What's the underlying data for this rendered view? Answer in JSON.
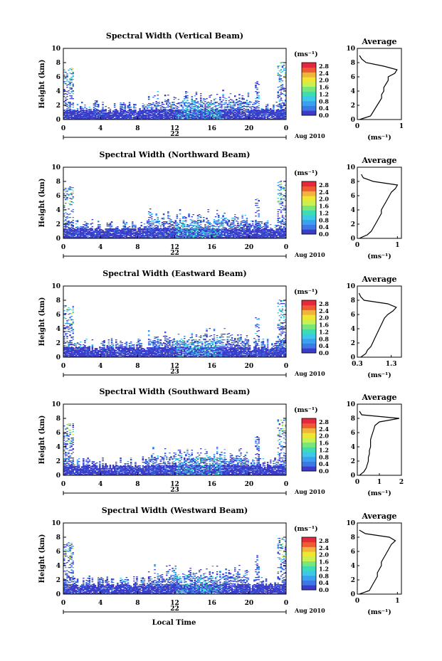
{
  "figure": {
    "x_label": "Local Time",
    "date_label": "Aug 2010",
    "colorbar_unit": "(ms⁻¹)",
    "colorbar_ticks": [
      "0.0",
      "0.4",
      "0.8",
      "1.2",
      "1.6",
      "2.0",
      "2.4",
      "2.8"
    ],
    "colorbar_colors": [
      "#3c3cc8",
      "#3c78e6",
      "#3ca0f0",
      "#3cc8e6",
      "#3cdcb4",
      "#78e678",
      "#c8f050",
      "#f0e632",
      "#f0b43c",
      "#f05a32",
      "#e6283c"
    ],
    "height_label": "Height (km)",
    "average_title": "Average",
    "avg_unit": "(ms⁻¹)"
  },
  "chart_data": [
    {
      "type": "heatmap",
      "title": "Spectral Width (Vertical Beam)",
      "x_ticks": [
        "0",
        "4",
        "8",
        "12",
        "16",
        "20",
        "0"
      ],
      "date_tick": "22",
      "y_ticks": [
        "0",
        "2",
        "4",
        "6",
        "8",
        "10"
      ],
      "xlim": [
        0,
        24
      ],
      "ylim": [
        0,
        10
      ],
      "clim": [
        0.0,
        3.0
      ],
      "avg_profile": {
        "xlim": [
          0,
          1
        ],
        "x_ticks": [
          "0",
          "1"
        ],
        "height_km": [
          0,
          0.5,
          1,
          1.5,
          2,
          2.5,
          3,
          3.5,
          4,
          4.5,
          5,
          5.5,
          6,
          6.5,
          7,
          7.5,
          8,
          8.5,
          9
        ],
        "value": [
          0.05,
          0.3,
          0.35,
          0.4,
          0.45,
          0.5,
          0.55,
          0.55,
          0.6,
          0.6,
          0.65,
          0.7,
          0.7,
          0.85,
          0.9,
          0.6,
          0.2,
          0.1,
          0.05
        ]
      }
    },
    {
      "type": "heatmap",
      "title": "Spectral Width (Northward Beam)",
      "x_ticks": [
        "0",
        "4",
        "8",
        "12",
        "16",
        "20",
        "0"
      ],
      "date_tick": "22",
      "y_ticks": [
        "0",
        "2",
        "4",
        "6",
        "8",
        "10"
      ],
      "xlim": [
        0,
        24
      ],
      "ylim": [
        0,
        10
      ],
      "clim": [
        0.0,
        3.0
      ],
      "avg_profile": {
        "xlim": [
          0,
          1.1
        ],
        "x_ticks": [
          "0",
          "1"
        ],
        "height_km": [
          0,
          0.5,
          1,
          1.5,
          2,
          2.5,
          3,
          3.5,
          4,
          4.5,
          5,
          5.5,
          6,
          6.5,
          7,
          7.5,
          8,
          8.5,
          9
        ],
        "value": [
          0.05,
          0.25,
          0.35,
          0.4,
          0.45,
          0.5,
          0.55,
          0.6,
          0.6,
          0.65,
          0.7,
          0.75,
          0.8,
          0.85,
          0.95,
          1.0,
          0.4,
          0.15,
          0.1
        ]
      }
    },
    {
      "type": "heatmap",
      "title": "Spectral Width (Eastward Beam)",
      "x_ticks": [
        "0",
        "4",
        "8",
        "12",
        "16",
        "20",
        "0"
      ],
      "date_tick": "23",
      "y_ticks": [
        "0",
        "2",
        "4",
        "6",
        "8",
        "10"
      ],
      "xlim": [
        0,
        24
      ],
      "ylim": [
        0,
        10
      ],
      "clim": [
        0.0,
        3.0
      ],
      "avg_profile": {
        "xlim": [
          0.3,
          1.6
        ],
        "x_ticks": [
          "0.3",
          "1.3"
        ],
        "height_km": [
          0,
          0.5,
          1,
          1.5,
          2,
          2.5,
          3,
          3.5,
          4,
          4.5,
          5,
          5.5,
          6,
          6.5,
          7,
          7.5,
          8,
          8.5,
          9
        ],
        "value": [
          0.4,
          0.55,
          0.6,
          0.7,
          0.75,
          0.8,
          0.85,
          0.9,
          0.95,
          1.0,
          1.05,
          1.1,
          1.2,
          1.35,
          1.45,
          1.2,
          0.5,
          0.4,
          0.35
        ]
      }
    },
    {
      "type": "heatmap",
      "title": "Spectral Width (Southward Beam)",
      "x_ticks": [
        "0",
        "4",
        "8",
        "12",
        "16",
        "20",
        "0"
      ],
      "date_tick": "23",
      "y_ticks": [
        "0",
        "2",
        "4",
        "6",
        "8",
        "10"
      ],
      "xlim": [
        0,
        24
      ],
      "ylim": [
        0,
        10
      ],
      "clim": [
        0.0,
        3.0
      ],
      "avg_profile": {
        "xlim": [
          0,
          2
        ],
        "x_ticks": [
          "0",
          "1",
          "2"
        ],
        "height_km": [
          0,
          0.5,
          1,
          1.5,
          2,
          2.5,
          3,
          3.5,
          4,
          4.5,
          5,
          5.5,
          6,
          6.5,
          7,
          7.5,
          8,
          8.5,
          9
        ],
        "value": [
          0.1,
          0.3,
          0.4,
          0.45,
          0.5,
          0.5,
          0.55,
          0.55,
          0.6,
          0.6,
          0.6,
          0.65,
          0.7,
          0.75,
          0.8,
          1.0,
          1.9,
          0.2,
          0.1
        ]
      }
    },
    {
      "type": "heatmap",
      "title": "Spectral Width (Westward Beam)",
      "x_ticks": [
        "0",
        "4",
        "8",
        "12",
        "16",
        "20",
        "0"
      ],
      "date_tick": "22",
      "y_ticks": [
        "0",
        "2",
        "4",
        "6",
        "8",
        "10"
      ],
      "xlim": [
        0,
        24
      ],
      "ylim": [
        0,
        10
      ],
      "clim": [
        0.0,
        3.0
      ],
      "avg_profile": {
        "xlim": [
          0,
          1.1
        ],
        "x_ticks": [
          "0",
          "1"
        ],
        "height_km": [
          0,
          0.5,
          1,
          1.5,
          2,
          2.5,
          3,
          3.5,
          4,
          4.5,
          5,
          5.5,
          6,
          6.5,
          7,
          7.5,
          8,
          8.5,
          9
        ],
        "value": [
          0.05,
          0.3,
          0.35,
          0.4,
          0.45,
          0.5,
          0.5,
          0.55,
          0.6,
          0.6,
          0.65,
          0.7,
          0.75,
          0.8,
          0.85,
          0.95,
          0.8,
          0.2,
          0.05
        ]
      }
    }
  ]
}
